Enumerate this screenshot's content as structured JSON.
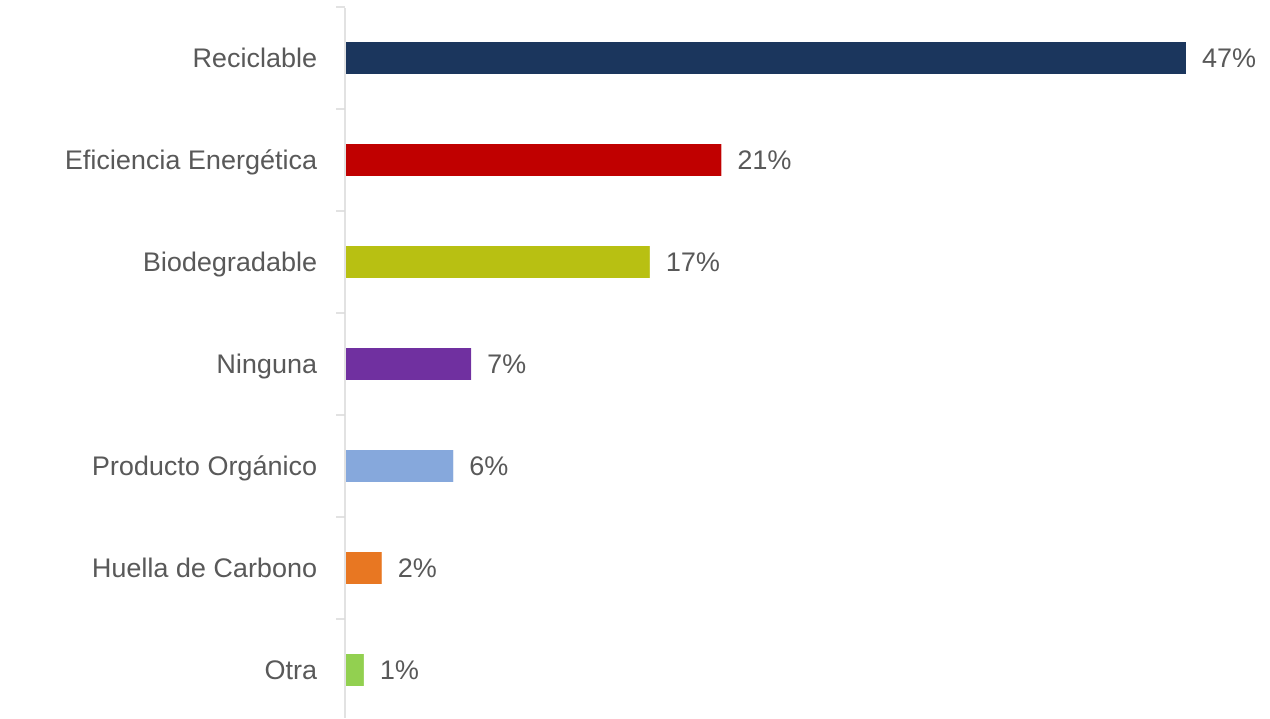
{
  "chart_data": {
    "type": "bar",
    "orientation": "horizontal",
    "categories": [
      "Reciclable",
      "Eficiencia Energética",
      "Biodegradable",
      "Ninguna",
      "Producto Orgánico",
      "Huella de Carbono",
      "Otra"
    ],
    "values": [
      47,
      21,
      17,
      7,
      6,
      2,
      1
    ],
    "data_labels": [
      "47%",
      "21%",
      "17%",
      "7%",
      "6%",
      "2%",
      "1%"
    ],
    "value_unit": "%",
    "colors": [
      "#1b365d",
      "#c00000",
      "#b8c012",
      "#7030a0",
      "#86a8dc",
      "#e87722",
      "#92d050"
    ],
    "title": "",
    "xlabel": "",
    "ylabel": "",
    "xlim": [
      0,
      47
    ],
    "grid": false,
    "legend": "none"
  }
}
